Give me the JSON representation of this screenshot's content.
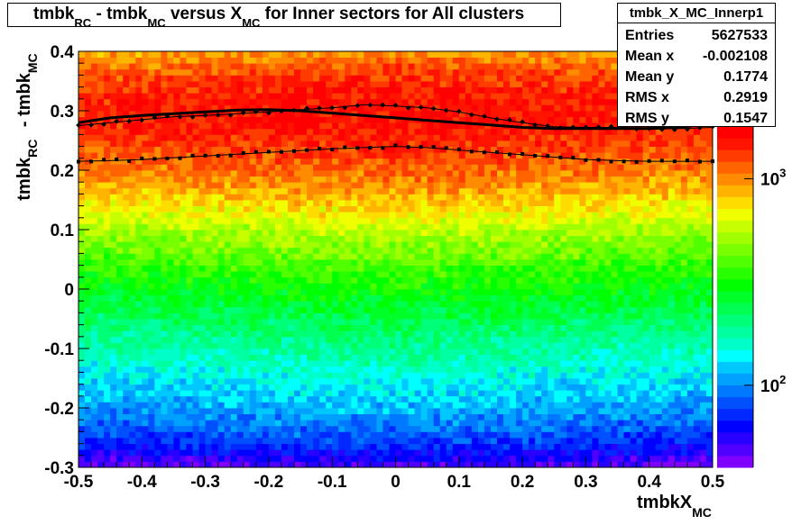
{
  "title": {
    "parts": [
      "tmbk",
      "RC",
      " - tmbk",
      "MC",
      " versus X",
      "MC",
      " for Inner sectors for All clusters"
    ]
  },
  "stats": {
    "name": "tmbk_X_MC_Innerp1",
    "rows": [
      {
        "label": "Entries",
        "value": "5627533"
      },
      {
        "label": "Mean x",
        "value": "-0.002108"
      },
      {
        "label": "Mean y",
        "value": "0.1774"
      },
      {
        "label": "RMS x",
        "value": "0.2919"
      },
      {
        "label": "RMS y",
        "value": "0.1547"
      }
    ]
  },
  "palette": [
    "#7f00ff",
    "#5000ff",
    "#2800ff",
    "#0000ff",
    "#0028ff",
    "#0050ff",
    "#0078ff",
    "#00a0ff",
    "#00c8ff",
    "#00ffff",
    "#00ffc8",
    "#00ffa0",
    "#00ff78",
    "#00ff50",
    "#00ff28",
    "#00ff00",
    "#28ff00",
    "#50ff00",
    "#78ff00",
    "#a0ff00",
    "#c8ff00",
    "#f0ff00",
    "#ffdc00",
    "#ffb400",
    "#ff8c00",
    "#ff6400",
    "#ff3c00",
    "#ff1400",
    "#ff0000"
  ],
  "chart_data": {
    "type": "heatmap",
    "title": "tmbk_RC - tmbk_MC versus X_MC for Inner sectors for All clusters",
    "xlabel": "tmbkX_MC",
    "ylabel": "tmbk_RC - tmbk_MC",
    "xlim": [
      -0.5,
      0.5
    ],
    "ylim": [
      -0.3,
      0.4
    ],
    "x_ticks": [
      "-0.5",
      "-0.4",
      "-0.3",
      "-0.2",
      "-0.1",
      "0",
      "0.1",
      "0.2",
      "0.3",
      "0.4",
      "0.5"
    ],
    "y_ticks": [
      "-0.3",
      "-0.2",
      "-0.1",
      "0",
      "0.1",
      "0.2",
      "0.3",
      "0.4"
    ],
    "color_scale": "log",
    "colorbar_labels": [
      {
        "base": "10",
        "exp": "2"
      },
      {
        "base": "10",
        "exp": "3"
      }
    ],
    "z_range": [
      40,
      1800
    ],
    "density_profile_y": [
      -0.3,
      -0.28,
      -0.25,
      -0.2,
      -0.15,
      -0.1,
      -0.05,
      0.0,
      0.05,
      0.1,
      0.15,
      0.2,
      0.25,
      0.28,
      0.32,
      0.35,
      0.38,
      0.4
    ],
    "density_profile_z": [
      45,
      60,
      80,
      110,
      140,
      180,
      230,
      300,
      400,
      550,
      800,
      1100,
      1400,
      1550,
      1500,
      1350,
      1100,
      950
    ],
    "series": [
      {
        "x": [
          -0.5,
          -0.45,
          -0.4,
          -0.35,
          -0.3,
          -0.25,
          -0.2,
          -0.15,
          -0.1,
          -0.05,
          0.0,
          0.05,
          0.1,
          0.15,
          0.2,
          0.25,
          0.3,
          0.35,
          0.4,
          0.45,
          0.5
        ],
        "y": [
          0.275,
          0.28,
          0.285,
          0.29,
          0.292,
          0.295,
          0.298,
          0.302,
          0.305,
          0.31,
          0.308,
          0.305,
          0.298,
          0.288,
          0.28,
          0.273,
          0.272,
          0.272,
          0.27,
          0.27,
          0.272
        ]
      },
      {
        "x": [
          -0.5,
          -0.45,
          -0.4,
          -0.35,
          -0.3,
          -0.25,
          -0.2,
          -0.15,
          -0.1,
          -0.05,
          0.0,
          0.05,
          0.1,
          0.15,
          0.2,
          0.25,
          0.3,
          0.35,
          0.4,
          0.45,
          0.5
        ],
        "y": [
          0.215,
          0.216,
          0.218,
          0.221,
          0.224,
          0.227,
          0.23,
          0.233,
          0.236,
          0.238,
          0.24,
          0.238,
          0.234,
          0.23,
          0.226,
          0.222,
          0.218,
          0.216,
          0.215,
          0.215,
          0.215
        ]
      },
      {
        "x": [
          -0.5,
          -0.45,
          -0.4,
          -0.35,
          -0.3,
          -0.25,
          -0.2,
          -0.15,
          -0.1,
          -0.05,
          0.0,
          0.05,
          0.1,
          0.15,
          0.2,
          0.25,
          0.3,
          0.35,
          0.4,
          0.45,
          0.5
        ],
        "y": [
          0.28,
          0.288,
          0.292,
          0.295,
          0.298,
          0.301,
          0.302,
          0.3,
          0.296,
          0.292,
          0.288,
          0.284,
          0.28,
          0.276,
          0.272,
          0.27,
          0.27,
          0.27,
          0.27,
          0.272,
          0.28
        ]
      }
    ]
  }
}
